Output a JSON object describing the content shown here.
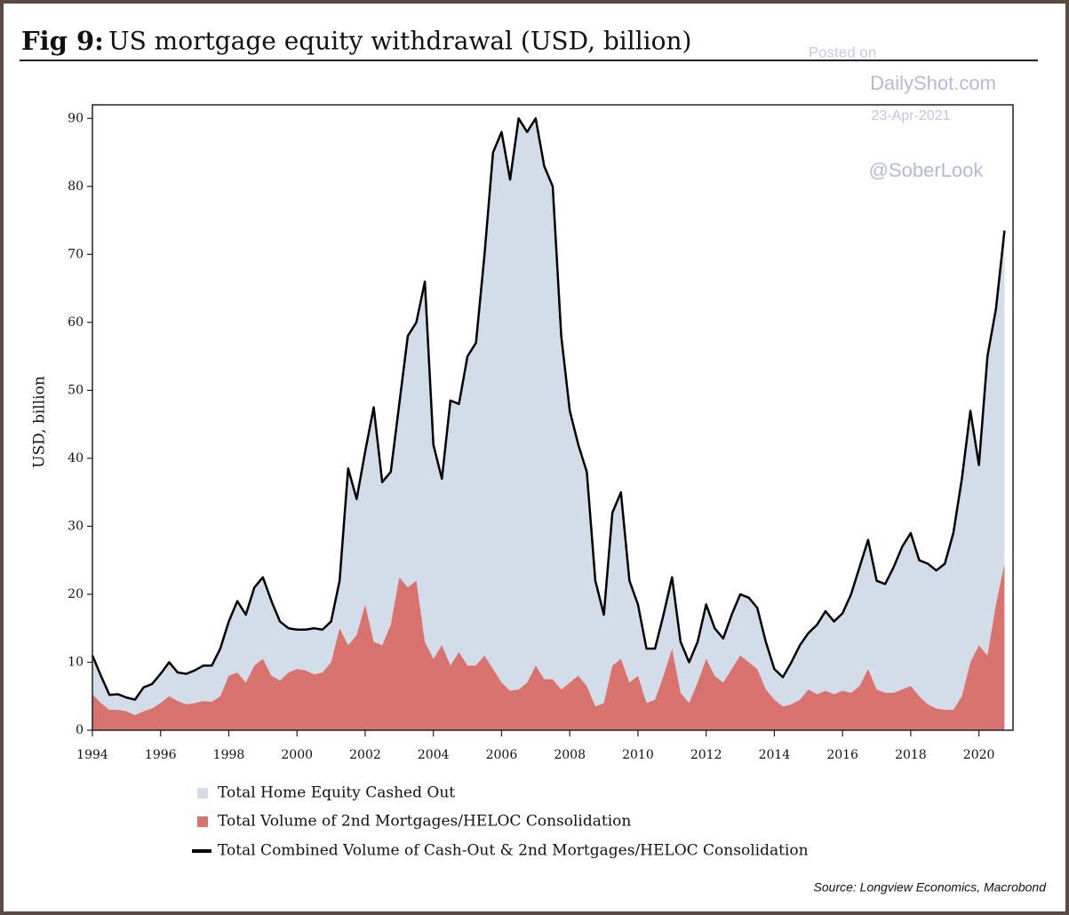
{
  "chart_data": {
    "type": "stacked_area_line",
    "title_label": "Fig 9:",
    "title": "US mortgage equity withdrawal (USD, billion)",
    "ylabel": "USD, billion",
    "watermark": [
      "Posted on",
      "DailyShot.com",
      "23-Apr-2021",
      "@SoberLook"
    ],
    "source": "Source: Longview Economics, Macrobond",
    "xlim": [
      1994,
      2021
    ],
    "xticks": [
      1994,
      1996,
      1998,
      2000,
      2002,
      2004,
      2006,
      2008,
      2010,
      2012,
      2014,
      2016,
      2018,
      2020
    ],
    "ylim": [
      0,
      92
    ],
    "yticks": [
      0,
      10,
      20,
      30,
      40,
      50,
      60,
      70,
      80,
      90
    ],
    "x": [
      1994,
      1994.25,
      1994.5,
      1994.75,
      1995,
      1995.25,
      1995.5,
      1995.75,
      1996,
      1996.25,
      1996.5,
      1996.75,
      1997,
      1997.25,
      1997.5,
      1997.75,
      1998,
      1998.25,
      1998.5,
      1998.75,
      1999,
      1999.25,
      1999.5,
      1999.75,
      2000,
      2000.25,
      2000.5,
      2000.75,
      2001,
      2001.25,
      2001.5,
      2001.75,
      2002,
      2002.25,
      2002.5,
      2002.75,
      2003,
      2003.25,
      2003.5,
      2003.75,
      2004,
      2004.25,
      2004.5,
      2004.75,
      2005,
      2005.25,
      2005.5,
      2005.75,
      2006,
      2006.25,
      2006.5,
      2006.75,
      2007,
      2007.25,
      2007.5,
      2007.75,
      2008,
      2008.25,
      2008.5,
      2008.75,
      2009,
      2009.25,
      2009.5,
      2009.75,
      2010,
      2010.25,
      2010.5,
      2010.75,
      2011,
      2011.25,
      2011.5,
      2011.75,
      2012,
      2012.25,
      2012.5,
      2012.75,
      2013,
      2013.25,
      2013.5,
      2013.75,
      2014,
      2014.25,
      2014.5,
      2014.75,
      2015,
      2015.25,
      2015.5,
      2015.75,
      2016,
      2016.25,
      2016.5,
      2016.75,
      2017,
      2017.25,
      2017.5,
      2017.75,
      2018,
      2018.25,
      2018.5,
      2018.75,
      2019,
      2019.25,
      2019.5,
      2019.75,
      2020,
      2020.25,
      2020.5,
      2020.75
    ],
    "series": [
      {
        "name": "Total Home Equity Cashed Out",
        "color": "#d3dde9",
        "kind": "area",
        "values": [
          5.7,
          4,
          2.2,
          2.3,
          2,
          2.3,
          3.5,
          3.6,
          4.3,
          5,
          4.2,
          4.5,
          4.8,
          5.2,
          5.3,
          7,
          8,
          10.5,
          10,
          11.5,
          12,
          11,
          8.7,
          6.5,
          5.8,
          6,
          6.8,
          6.3,
          6,
          7,
          26,
          20,
          22.5,
          34.5,
          24,
          22.5,
          25.5,
          37,
          38,
          53,
          31.5,
          24.5,
          39,
          36.5,
          45.5,
          47.5,
          59,
          76,
          81,
          75.2,
          84,
          81,
          80.5,
          75.5,
          72.5,
          52,
          40,
          34,
          31.5,
          18.5,
          13,
          22.5,
          24.5,
          15,
          10.5,
          8,
          7.5,
          9,
          10.5,
          7.5,
          6,
          6,
          8,
          7,
          6.5,
          8,
          9,
          9.5,
          9,
          7,
          4.5,
          4.3,
          6.2,
          8,
          8.3,
          10.2,
          11.7,
          10.7,
          11.4,
          14.5,
          17.5,
          19,
          16,
          16,
          18.5,
          21,
          22.5,
          20,
          20.7,
          20.3,
          21.5,
          26,
          32,
          37,
          26.5,
          44,
          43.5,
          49
        ]
      },
      {
        "name": "Total Volume of 2nd Mortgages/HELOC Consolidation",
        "color": "#d9736f",
        "kind": "area",
        "values": [
          5.3,
          4,
          3,
          3,
          2.8,
          2.2,
          2.8,
          3.2,
          4,
          5,
          4.3,
          3.8,
          4,
          4.3,
          4.2,
          5,
          8,
          8.5,
          7,
          9.5,
          10.5,
          8,
          7.3,
          8.5,
          9,
          8.8,
          8.2,
          8.5,
          10,
          15,
          12.5,
          14,
          18.5,
          13,
          12.5,
          15.5,
          22.5,
          21,
          22,
          13,
          10.5,
          12.5,
          9.5,
          11.5,
          9.5,
          9.5,
          11,
          9,
          7,
          5.8,
          6,
          7,
          9.5,
          7.5,
          7.5,
          6,
          7,
          8,
          6.5,
          3.5,
          4,
          9.5,
          10.5,
          7,
          8,
          4,
          4.5,
          8,
          12,
          5.5,
          4,
          7,
          10.5,
          8,
          7,
          9,
          11,
          10,
          9,
          6,
          4.5,
          3.5,
          3.8,
          4.5,
          6,
          5.3,
          5.8,
          5.3,
          5.8,
          5.5,
          6.5,
          9,
          6,
          5.5,
          5.5,
          6,
          6.5,
          5,
          3.8,
          3.2,
          3,
          3,
          5,
          10,
          12.5,
          11,
          18.5,
          24.5
        ]
      },
      {
        "name": "Total Combined Volume of Cash-Out & 2nd Mortgages/HELOC Consolidation",
        "color": "#000000",
        "kind": "line",
        "values": [
          11,
          8,
          5.2,
          5.3,
          4.8,
          4.5,
          6.3,
          6.8,
          8.3,
          10,
          8.5,
          8.3,
          8.8,
          9.5,
          9.5,
          12,
          16,
          19,
          17,
          21,
          22.5,
          19,
          16,
          15,
          14.8,
          14.8,
          15,
          14.8,
          16,
          22,
          38.5,
          34,
          41,
          47.5,
          36.5,
          38,
          48,
          58,
          60,
          66,
          42,
          37,
          48.5,
          48,
          55,
          57,
          70,
          85,
          88,
          81,
          90,
          88,
          90,
          83,
          80,
          58,
          47,
          42,
          38,
          22,
          17,
          32,
          35,
          22,
          18.5,
          12,
          12,
          17,
          22.5,
          13,
          10,
          13,
          18.5,
          15,
          13.5,
          17,
          20,
          19.5,
          18,
          13,
          9,
          7.8,
          10,
          12.5,
          14.3,
          15.5,
          17.5,
          16,
          17.2,
          20,
          24,
          28,
          22,
          21.5,
          24,
          27,
          29,
          25,
          24.5,
          23.5,
          24.5,
          29,
          37,
          47,
          39,
          55,
          62,
          73.5
        ]
      }
    ]
  }
}
